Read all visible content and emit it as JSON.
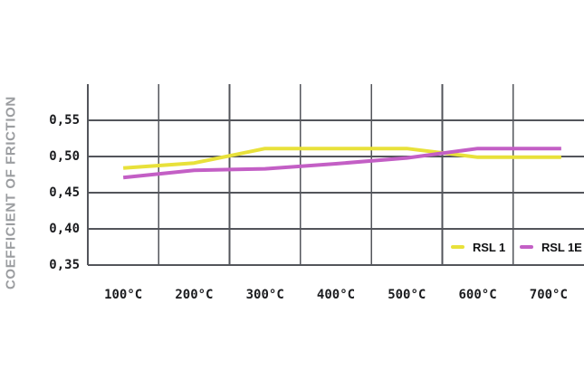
{
  "chart_data": {
    "type": "line",
    "title": "",
    "xlabel": "",
    "ylabel": "COEFFICIENT OF FRICTION",
    "x_categories": [
      "100°C",
      "200°C",
      "300°C",
      "400°C",
      "500°C",
      "600°C",
      "700°C"
    ],
    "y_ticks": [
      "0,55",
      "0,50",
      "0,45",
      "0,40",
      "0,35"
    ],
    "y_tick_values": [
      0.55,
      0.5,
      0.45,
      0.4,
      0.35
    ],
    "ylim": [
      0.35,
      0.6
    ],
    "grid": true,
    "legend_position": "inside-bottom-right",
    "series": [
      {
        "name": "RSL 1",
        "color": "#e8e13a",
        "values": [
          0.484,
          0.491,
          0.511,
          0.511,
          0.511,
          0.499,
          0.499
        ]
      },
      {
        "name": "RSL 1E",
        "color": "#c35fc5",
        "values": [
          0.471,
          0.481,
          0.483,
          0.49,
          0.498,
          0.511,
          0.511
        ]
      }
    ],
    "colors": {
      "grid": "#53555b",
      "tick_text": "#1b1c1f",
      "axis_title": "#9b9da0",
      "legend_text": "#101113",
      "background": "#ffffff"
    }
  }
}
